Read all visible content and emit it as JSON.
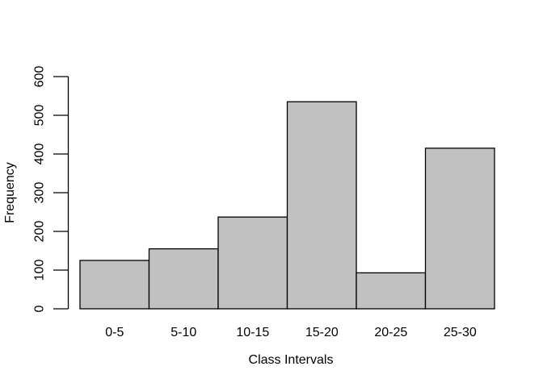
{
  "figure": {
    "background": "#ffffff"
  },
  "chart_data": {
    "type": "bar",
    "subtype": "histogram",
    "title": "",
    "xlabel": "Class Intervals",
    "ylabel": "Frequency",
    "categories": [
      "0-5",
      "5-10",
      "10-15",
      "15-20",
      "20-25",
      "25-30"
    ],
    "values": [
      125,
      155,
      237,
      535,
      93,
      415
    ],
    "yticks": [
      0,
      100,
      200,
      300,
      400,
      500,
      600
    ],
    "ylim": [
      0,
      600
    ],
    "grid": false,
    "legend": "none",
    "bar_fill": "#c1c1c1",
    "bar_border": "#000000",
    "axis_color": "#000000",
    "text_color": "#000000"
  }
}
